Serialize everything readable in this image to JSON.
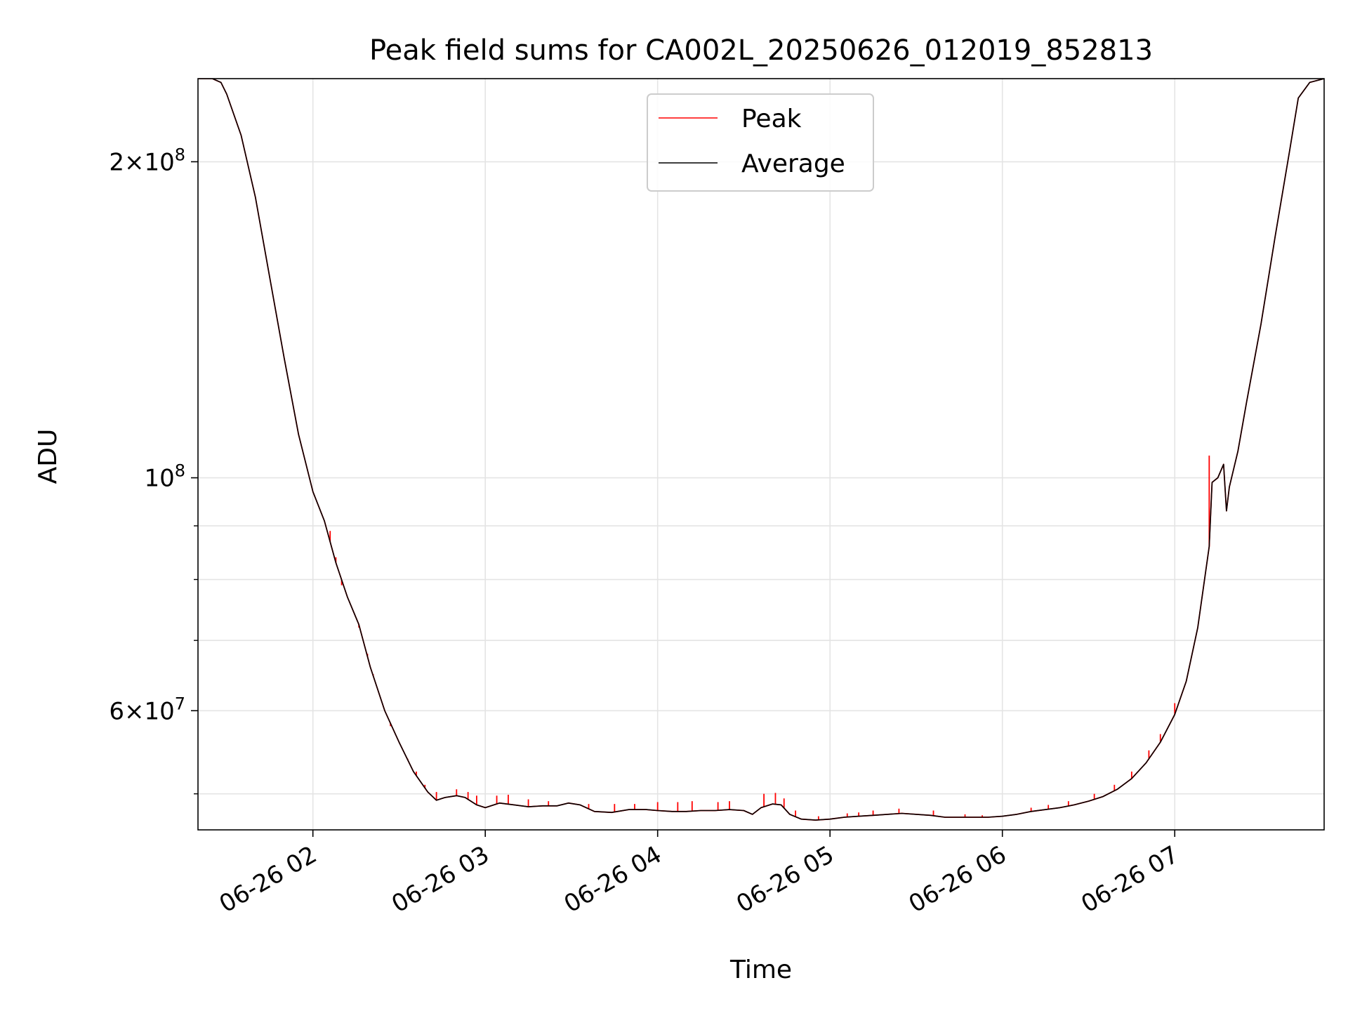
{
  "chart_data": {
    "type": "line",
    "title": "Peak field sums for CA002L_20250626_012019_852813",
    "xlabel": "Time",
    "ylabel": "ADU",
    "x_axis": "datetime",
    "y_scale": "log",
    "xlim": [
      "2025-06-26 01:20",
      "2025-06-26 07:52"
    ],
    "ylim": [
      46200000,
      240000000
    ],
    "grid": true,
    "legend_location": "upper center",
    "x_ticks": [
      {
        "t": "2025-06-26 02:00",
        "label": "06-26 02"
      },
      {
        "t": "2025-06-26 03:00",
        "label": "06-26 03"
      },
      {
        "t": "2025-06-26 04:00",
        "label": "06-26 04"
      },
      {
        "t": "2025-06-26 05:00",
        "label": "06-26 05"
      },
      {
        "t": "2025-06-26 06:00",
        "label": "06-26 06"
      },
      {
        "t": "2025-06-26 07:00",
        "label": "06-26 07"
      }
    ],
    "y_major_ticks": [
      {
        "value": 60000000,
        "base": "6",
        "exp": "7"
      },
      {
        "value": 100000000,
        "base": "",
        "exp": "8"
      },
      {
        "value": 200000000,
        "base": "2",
        "exp": "8"
      }
    ],
    "y_minor_ticks": [
      50000000,
      70000000,
      80000000,
      90000000
    ],
    "series": [
      {
        "name": "Peak",
        "color": "#ff0000",
        "spikes": [
          [
            "2025-06-26 02:06",
            89000000
          ],
          [
            "2025-06-26 02:08",
            84000000
          ],
          [
            "2025-06-26 02:10",
            79000000
          ],
          [
            "2025-06-26 02:16",
            72000000
          ],
          [
            "2025-06-26 02:19",
            68000000
          ],
          [
            "2025-06-26 02:21",
            65000000
          ],
          [
            "2025-06-26 02:27",
            58000000
          ],
          [
            "2025-06-26 02:30",
            56000000
          ],
          [
            "2025-06-26 02:33",
            54000000
          ],
          [
            "2025-06-26 02:36",
            52500000
          ],
          [
            "2025-06-26 02:39",
            51000000
          ],
          [
            "2025-06-26 02:43",
            50200000
          ],
          [
            "2025-06-26 02:50",
            50500000
          ],
          [
            "2025-06-26 02:54",
            50200000
          ],
          [
            "2025-06-26 02:57",
            49800000
          ],
          [
            "2025-06-26 03:04",
            49800000
          ],
          [
            "2025-06-26 03:08",
            49900000
          ],
          [
            "2025-06-26 03:15",
            49400000
          ],
          [
            "2025-06-26 03:22",
            49200000
          ],
          [
            "2025-06-26 03:36",
            48900000
          ],
          [
            "2025-06-26 03:45",
            48900000
          ],
          [
            "2025-06-26 03:52",
            48900000
          ],
          [
            "2025-06-26 04:00",
            49100000
          ],
          [
            "2025-06-26 04:07",
            49100000
          ],
          [
            "2025-06-26 04:12",
            49200000
          ],
          [
            "2025-06-26 04:21",
            49100000
          ],
          [
            "2025-06-26 04:25",
            49200000
          ],
          [
            "2025-06-26 04:37",
            50000000
          ],
          [
            "2025-06-26 04:41",
            50100000
          ],
          [
            "2025-06-26 04:44",
            49500000
          ],
          [
            "2025-06-26 04:48",
            48200000
          ],
          [
            "2025-06-26 04:56",
            47600000
          ],
          [
            "2025-06-26 05:06",
            47900000
          ],
          [
            "2025-06-26 05:10",
            48000000
          ],
          [
            "2025-06-26 05:15",
            48200000
          ],
          [
            "2025-06-26 05:24",
            48400000
          ],
          [
            "2025-06-26 05:36",
            48200000
          ],
          [
            "2025-06-26 05:47",
            47800000
          ],
          [
            "2025-06-26 05:53",
            47700000
          ],
          [
            "2025-06-26 06:10",
            48500000
          ],
          [
            "2025-06-26 06:16",
            48800000
          ],
          [
            "2025-06-26 06:23",
            49200000
          ],
          [
            "2025-06-26 06:32",
            50000000
          ],
          [
            "2025-06-26 06:39",
            51000000
          ],
          [
            "2025-06-26 06:45",
            52500000
          ],
          [
            "2025-06-26 06:51",
            55000000
          ],
          [
            "2025-06-26 06:55",
            57000000
          ],
          [
            "2025-06-26 07:00",
            61000000
          ],
          [
            "2025-06-26 07:12",
            105000000
          ]
        ]
      },
      {
        "name": "Average",
        "color": "#000000",
        "points": [
          [
            "2025-06-26 01:20",
            240000000
          ],
          [
            "2025-06-26 01:25",
            240000000
          ],
          [
            "2025-06-26 01:28",
            238000000
          ],
          [
            "2025-06-26 01:30",
            232000000
          ],
          [
            "2025-06-26 01:35",
            212000000
          ],
          [
            "2025-06-26 01:40",
            185000000
          ],
          [
            "2025-06-26 01:45",
            155000000
          ],
          [
            "2025-06-26 01:50",
            130000000
          ],
          [
            "2025-06-26 01:55",
            110000000
          ],
          [
            "2025-06-26 02:00",
            97000000
          ],
          [
            "2025-06-26 02:04",
            91000000
          ],
          [
            "2025-06-26 02:08",
            83000000
          ],
          [
            "2025-06-26 02:12",
            77000000
          ],
          [
            "2025-06-26 02:16",
            72500000
          ],
          [
            "2025-06-26 02:20",
            66000000
          ],
          [
            "2025-06-26 02:25",
            60000000
          ],
          [
            "2025-06-26 02:30",
            56000000
          ],
          [
            "2025-06-26 02:35",
            52500000
          ],
          [
            "2025-06-26 02:40",
            50200000
          ],
          [
            "2025-06-26 02:43",
            49300000
          ],
          [
            "2025-06-26 02:46",
            49600000
          ],
          [
            "2025-06-26 02:50",
            49800000
          ],
          [
            "2025-06-26 02:53",
            49600000
          ],
          [
            "2025-06-26 02:57",
            48800000
          ],
          [
            "2025-06-26 03:00",
            48500000
          ],
          [
            "2025-06-26 03:05",
            49000000
          ],
          [
            "2025-06-26 03:10",
            48800000
          ],
          [
            "2025-06-26 03:15",
            48600000
          ],
          [
            "2025-06-26 03:20",
            48700000
          ],
          [
            "2025-06-26 03:25",
            48700000
          ],
          [
            "2025-06-26 03:29",
            49000000
          ],
          [
            "2025-06-26 03:33",
            48800000
          ],
          [
            "2025-06-26 03:38",
            48100000
          ],
          [
            "2025-06-26 03:44",
            48000000
          ],
          [
            "2025-06-26 03:50",
            48300000
          ],
          [
            "2025-06-26 03:56",
            48300000
          ],
          [
            "2025-06-26 04:00",
            48200000
          ],
          [
            "2025-06-26 04:05",
            48100000
          ],
          [
            "2025-06-26 04:10",
            48100000
          ],
          [
            "2025-06-26 04:15",
            48200000
          ],
          [
            "2025-06-26 04:20",
            48200000
          ],
          [
            "2025-06-26 04:25",
            48300000
          ],
          [
            "2025-06-26 04:30",
            48200000
          ],
          [
            "2025-06-26 04:33",
            47800000
          ],
          [
            "2025-06-26 04:36",
            48500000
          ],
          [
            "2025-06-26 04:40",
            48900000
          ],
          [
            "2025-06-26 04:43",
            48800000
          ],
          [
            "2025-06-26 04:46",
            47800000
          ],
          [
            "2025-06-26 04:50",
            47300000
          ],
          [
            "2025-06-26 04:55",
            47200000
          ],
          [
            "2025-06-26 05:00",
            47300000
          ],
          [
            "2025-06-26 05:05",
            47500000
          ],
          [
            "2025-06-26 05:10",
            47600000
          ],
          [
            "2025-06-26 05:15",
            47700000
          ],
          [
            "2025-06-26 05:20",
            47800000
          ],
          [
            "2025-06-26 05:25",
            47900000
          ],
          [
            "2025-06-26 05:30",
            47800000
          ],
          [
            "2025-06-26 05:35",
            47700000
          ],
          [
            "2025-06-26 05:40",
            47500000
          ],
          [
            "2025-06-26 05:45",
            47500000
          ],
          [
            "2025-06-26 05:50",
            47500000
          ],
          [
            "2025-06-26 05:55",
            47500000
          ],
          [
            "2025-06-26 06:00",
            47600000
          ],
          [
            "2025-06-26 06:05",
            47800000
          ],
          [
            "2025-06-26 06:10",
            48100000
          ],
          [
            "2025-06-26 06:15",
            48300000
          ],
          [
            "2025-06-26 06:20",
            48500000
          ],
          [
            "2025-06-26 06:25",
            48800000
          ],
          [
            "2025-06-26 06:30",
            49200000
          ],
          [
            "2025-06-26 06:35",
            49700000
          ],
          [
            "2025-06-26 06:40",
            50500000
          ],
          [
            "2025-06-26 06:45",
            51700000
          ],
          [
            "2025-06-26 06:50",
            53500000
          ],
          [
            "2025-06-26 06:55",
            56000000
          ],
          [
            "2025-06-26 07:00",
            59500000
          ],
          [
            "2025-06-26 07:04",
            64000000
          ],
          [
            "2025-06-26 07:08",
            72000000
          ],
          [
            "2025-06-26 07:12",
            86000000
          ],
          [
            "2025-06-26 07:13",
            99000000
          ],
          [
            "2025-06-26 07:15",
            100000000
          ],
          [
            "2025-06-26 07:17",
            103000000
          ],
          [
            "2025-06-26 07:18",
            93000000
          ],
          [
            "2025-06-26 07:19",
            98000000
          ],
          [
            "2025-06-26 07:22",
            106000000
          ],
          [
            "2025-06-26 07:25",
            118000000
          ],
          [
            "2025-06-26 07:30",
            140000000
          ],
          [
            "2025-06-26 07:35",
            170000000
          ],
          [
            "2025-06-26 07:40",
            205000000
          ],
          [
            "2025-06-26 07:43",
            230000000
          ],
          [
            "2025-06-26 07:47",
            238000000
          ],
          [
            "2025-06-26 07:52",
            240000000
          ]
        ]
      }
    ]
  }
}
